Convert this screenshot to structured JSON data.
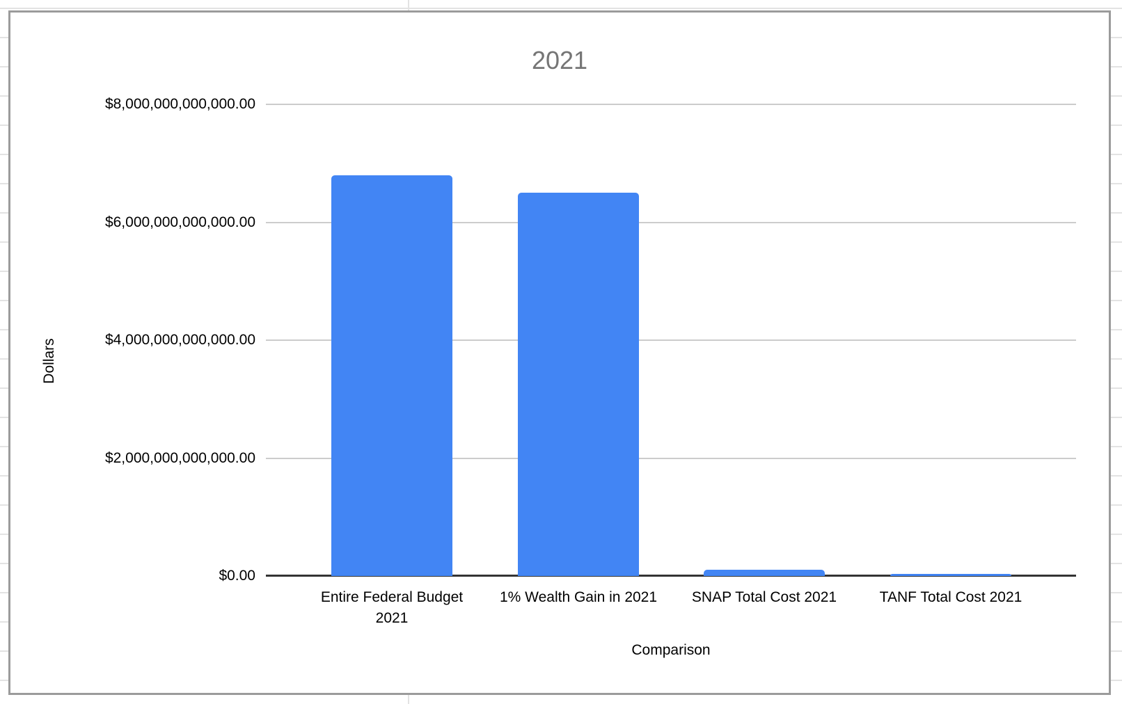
{
  "chart_data": {
    "type": "bar",
    "title": "2021",
    "xlabel": "Comparison",
    "ylabel": "Dollars",
    "categories": [
      "Entire Federal Budget 2021",
      "1% Wealth Gain in 2021",
      "SNAP Total Cost 2021",
      "TANF Total Cost 2021"
    ],
    "values": [
      6800000000000,
      6500000000000,
      110000000000,
      30000000000
    ],
    "ylim": [
      0,
      8000000000000
    ],
    "y_ticks": [
      {
        "value": 0,
        "label": "$0.00"
      },
      {
        "value": 2000000000000,
        "label": "$2,000,000,000,000.00"
      },
      {
        "value": 4000000000000,
        "label": "$4,000,000,000,000.00"
      },
      {
        "value": 6000000000000,
        "label": "$6,000,000,000,000.00"
      },
      {
        "value": 8000000000000,
        "label": "$8,000,000,000,000.00"
      }
    ],
    "grid": true,
    "legend": "none",
    "bar_color": "#4285f4",
    "title_color": "#757575",
    "gridline_color": "#cccccc",
    "axis_line_color": "#333333"
  }
}
